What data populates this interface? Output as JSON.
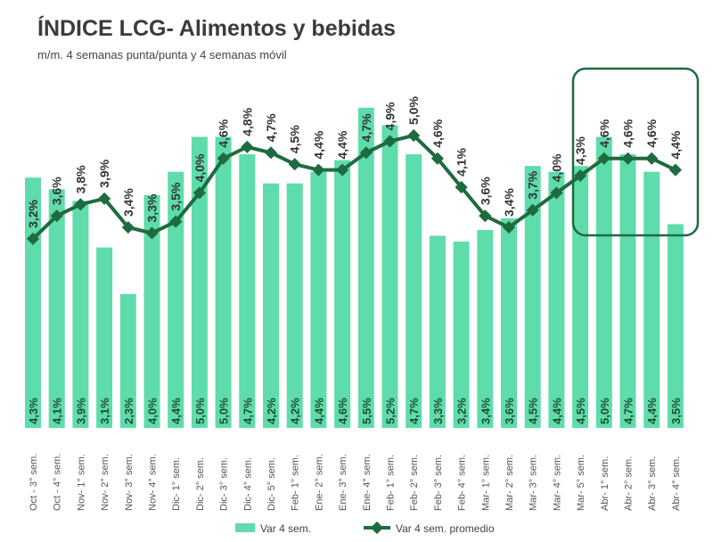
{
  "chart_data": {
    "type": "bar+line",
    "title": "ÍNDICE LCG- Alimentos y bebidas",
    "subtitle": "m/m. 4 semanas punta/punta y 4 semanas móvil",
    "categories": [
      "Oct - 3° sem.",
      "Oct - 4° sem.",
      "Nov- 1° sem.",
      "Nov- 2° sem.",
      "Nov- 3° sem.",
      "Nov- 4° sem.",
      "Dic- 1° sem.",
      "Dic- 2° sem.",
      "Dic- 3° sem.",
      "Dic- 4° sem.",
      "Dic- 5° sem.",
      "Feb- 1° sem.",
      "Ene- 2° sem.",
      "Ene- 3° sem.",
      "Ene- 4° sem.",
      "Feb- 1° sem.",
      "Feb- 2° sem.",
      "Feb- 3° sem.",
      "Feb- 4° sem.",
      "Mar- 1° sem.",
      "Mar- 2° sem.",
      "Mar- 3° sem.",
      "Mar- 4° sem.",
      "Mar- 5° sem.",
      "Abr- 1° sem.",
      "Abr- 2° sem.",
      "Abr- 3° sem.",
      "Abr- 4° sem."
    ],
    "series": [
      {
        "name": "Var 4 sem.",
        "type": "bar",
        "color": "#5fdcab",
        "values": [
          4.3,
          4.1,
          3.9,
          3.1,
          2.3,
          4.0,
          4.4,
          5.0,
          5.0,
          4.7,
          4.2,
          4.2,
          4.4,
          4.6,
          5.5,
          5.2,
          4.7,
          3.3,
          3.2,
          3.4,
          3.6,
          4.5,
          4.4,
          4.5,
          5.0,
          4.7,
          4.4,
          3.5
        ]
      },
      {
        "name": "Var 4 sem. promedio",
        "type": "line",
        "color": "#1f6b40",
        "values": [
          3.2,
          3.6,
          3.8,
          3.9,
          3.4,
          3.3,
          3.5,
          4.0,
          4.6,
          4.8,
          4.7,
          4.5,
          4.4,
          4.4,
          4.7,
          4.9,
          5.0,
          4.6,
          4.1,
          3.6,
          3.4,
          3.7,
          4.0,
          4.3,
          4.6,
          4.6,
          4.6,
          4.4
        ]
      }
    ],
    "legend": "bottom",
    "grid": false,
    "highlight": "Abr- 1° sem. to Abr- 4° sem."
  }
}
